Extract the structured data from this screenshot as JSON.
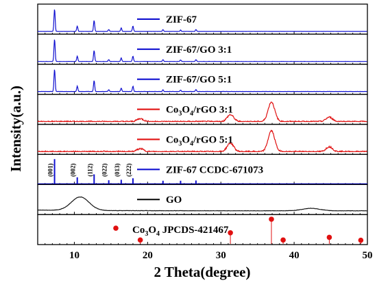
{
  "chart_data": {
    "type": "line",
    "title": "",
    "xlabel": "2 Theta(degree)",
    "ylabel": "Intensity(a.u.)",
    "xlim": [
      5,
      50
    ],
    "xticks": [
      10,
      20,
      30,
      40,
      50
    ],
    "stacked_panels": true,
    "legend_placement": "inside each panel, center",
    "series": [
      {
        "name": "ZIF-67",
        "color": "#1010d0",
        "peaks": [
          {
            "x": 7.3,
            "h": 0.92
          },
          {
            "x": 10.4,
            "h": 0.22
          },
          {
            "x": 12.7,
            "h": 0.45
          },
          {
            "x": 14.7,
            "h": 0.08
          },
          {
            "x": 16.4,
            "h": 0.14
          },
          {
            "x": 18.0,
            "h": 0.22
          },
          {
            "x": 22.1,
            "h": 0.07
          },
          {
            "x": 24.5,
            "h": 0.06
          },
          {
            "x": 26.6,
            "h": 0.08
          }
        ]
      },
      {
        "name": "ZIF-67/GO 3:1",
        "color": "#1010d0",
        "peaks": [
          {
            "x": 7.3,
            "h": 0.92
          },
          {
            "x": 10.4,
            "h": 0.22
          },
          {
            "x": 12.7,
            "h": 0.45
          },
          {
            "x": 14.7,
            "h": 0.08
          },
          {
            "x": 16.4,
            "h": 0.14
          },
          {
            "x": 18.0,
            "h": 0.22
          },
          {
            "x": 22.1,
            "h": 0.07
          },
          {
            "x": 24.5,
            "h": 0.06
          },
          {
            "x": 26.6,
            "h": 0.08
          }
        ]
      },
      {
        "name": "ZIF-67/GO 5:1",
        "color": "#1010d0",
        "peaks": [
          {
            "x": 7.3,
            "h": 0.92
          },
          {
            "x": 10.4,
            "h": 0.22
          },
          {
            "x": 12.7,
            "h": 0.45
          },
          {
            "x": 14.7,
            "h": 0.08
          },
          {
            "x": 16.4,
            "h": 0.14
          },
          {
            "x": 18.0,
            "h": 0.22
          },
          {
            "x": 22.1,
            "h": 0.07
          },
          {
            "x": 24.5,
            "h": 0.06
          },
          {
            "x": 26.6,
            "h": 0.08
          }
        ]
      },
      {
        "name": "Co3O4/rGO 3:1",
        "label_main": "Co",
        "label_sub1": "3",
        "label_mid": "O",
        "label_sub2": "4",
        "label_tail": "/rGO 3:1",
        "color": "#e01010",
        "peaks": [
          {
            "x": 19.0,
            "h": 0.12
          },
          {
            "x": 31.3,
            "h": 0.28
          },
          {
            "x": 36.9,
            "h": 0.8
          },
          {
            "x": 44.8,
            "h": 0.18
          }
        ]
      },
      {
        "name": "Co3O4/rGO 5:1",
        "label_main": "Co",
        "label_sub1": "3",
        "label_mid": "O",
        "label_sub2": "4",
        "label_tail": "/rGO 5:1",
        "color": "#e01010",
        "peaks": [
          {
            "x": 19.0,
            "h": 0.12
          },
          {
            "x": 31.3,
            "h": 0.35
          },
          {
            "x": 36.9,
            "h": 0.85
          },
          {
            "x": 44.8,
            "h": 0.2
          }
        ]
      },
      {
        "name": "ZIF-67 CCDC-671073",
        "color": "#1010d0",
        "sticks": [
          {
            "x": 7.3,
            "h": 0.92
          },
          {
            "x": 10.4,
            "h": 0.18
          },
          {
            "x": 12.7,
            "h": 0.3
          },
          {
            "x": 14.7,
            "h": 0.06
          },
          {
            "x": 16.4,
            "h": 0.08
          },
          {
            "x": 18.0,
            "h": 0.14
          },
          {
            "x": 22.1,
            "h": 0.04
          },
          {
            "x": 24.5,
            "h": 0.04
          },
          {
            "x": 26.6,
            "h": 0.05
          }
        ],
        "hkl": [
          {
            "x": 7.3,
            "label": "(001)"
          },
          {
            "x": 10.4,
            "label": "(002)"
          },
          {
            "x": 12.7,
            "label": "(112)"
          },
          {
            "x": 14.7,
            "label": "(022)"
          },
          {
            "x": 16.4,
            "label": "(013)"
          },
          {
            "x": 18.0,
            "label": "(222)"
          }
        ]
      },
      {
        "name": "GO",
        "color": "#111111",
        "peaks": [
          {
            "x": 10.8,
            "h": 0.55
          },
          {
            "x": 42.3,
            "h": 0.1
          }
        ]
      },
      {
        "name": "Co3O4 JPCDS-421467",
        "label_main": "Co",
        "label_sub1": "3",
        "label_mid": "O",
        "label_sub2": "4",
        "label_tail": " JPCDS-421467",
        "color": "#e01010",
        "sticks": [
          {
            "x": 19.0,
            "h": 0.08
          },
          {
            "x": 31.3,
            "h": 0.4
          },
          {
            "x": 36.9,
            "h": 1.0
          },
          {
            "x": 38.5,
            "h": 0.08
          },
          {
            "x": 44.8,
            "h": 0.2
          },
          {
            "x": 49.1,
            "h": 0.07
          }
        ]
      }
    ]
  }
}
